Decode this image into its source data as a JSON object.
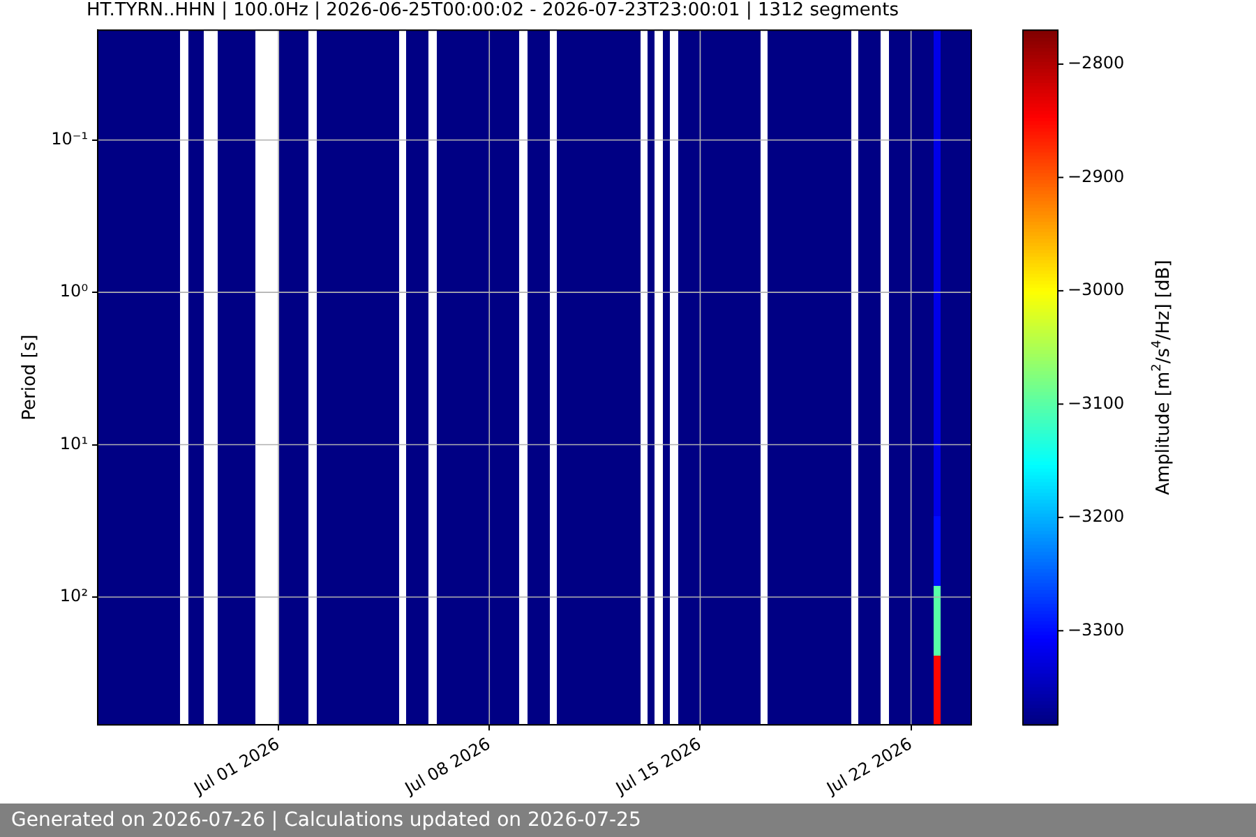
{
  "chart_data": {
    "type": "heatmap",
    "title": "HT.TYRN..HHN | 100.0Hz | 2026-06-25T00:00:02 - 2026-07-23T23:00:01 | 1312 segments",
    "ylabel": "Period [s]",
    "clabel": "Amplitude [m$^{2}$/s$^{4}$/Hz] [dB]",
    "annotations": [
      "Generated on 2026-07-26 | Calculations updated on 2026-07-25"
    ],
    "x": [
      "2026-06-25T03:00",
      "2026-06-25T09:00",
      "2026-06-25T15:00",
      "2026-06-25T21:00",
      "2026-06-26T03:00",
      "2026-06-26T09:00",
      "2026-06-26T15:00",
      "2026-06-26T21:00",
      "2026-06-27T03:00",
      "2026-06-27T09:00",
      "2026-06-27T15:00",
      "2026-06-27T21:00",
      "2026-06-28T03:00",
      "2026-06-28T09:00",
      "2026-06-28T15:00",
      "2026-06-28T21:00",
      "2026-06-29T03:00",
      "2026-06-29T09:00",
      "2026-06-29T15:00",
      "2026-06-29T21:00",
      "2026-06-30T03:00",
      "2026-06-30T09:00",
      "2026-06-30T15:00",
      "2026-06-30T21:00",
      "2026-07-01T03:00",
      "2026-07-01T09:00",
      "2026-07-01T15:00",
      "2026-07-01T21:00",
      "2026-07-02T03:00",
      "2026-07-02T09:00",
      "2026-07-02T15:00",
      "2026-07-02T21:00",
      "2026-07-03T03:00",
      "2026-07-03T09:00",
      "2026-07-03T15:00",
      "2026-07-03T21:00",
      "2026-07-04T03:00",
      "2026-07-04T09:00",
      "2026-07-04T15:00",
      "2026-07-04T21:00",
      "2026-07-05T03:00",
      "2026-07-05T09:00",
      "2026-07-05T15:00",
      "2026-07-05T21:00",
      "2026-07-06T03:00",
      "2026-07-06T09:00",
      "2026-07-06T15:00",
      "2026-07-06T21:00",
      "2026-07-07T03:00",
      "2026-07-07T09:00",
      "2026-07-07T15:00",
      "2026-07-07T21:00",
      "2026-07-08T03:00",
      "2026-07-08T09:00",
      "2026-07-08T15:00",
      "2026-07-08T21:00",
      "2026-07-09T03:00",
      "2026-07-09T09:00",
      "2026-07-09T15:00",
      "2026-07-09T21:00",
      "2026-07-10T03:00",
      "2026-07-10T09:00",
      "2026-07-10T15:00",
      "2026-07-10T21:00",
      "2026-07-11T03:00",
      "2026-07-11T09:00",
      "2026-07-11T15:00",
      "2026-07-11T21:00",
      "2026-07-12T03:00",
      "2026-07-12T09:00",
      "2026-07-12T15:00",
      "2026-07-12T21:00",
      "2026-07-13T03:00",
      "2026-07-13T09:00",
      "2026-07-13T15:00",
      "2026-07-13T21:00",
      "2026-07-14T03:00",
      "2026-07-14T09:00",
      "2026-07-14T15:00",
      "2026-07-14T21:00",
      "2026-07-15T03:00",
      "2026-07-15T09:00",
      "2026-07-15T15:00",
      "2026-07-15T21:00",
      "2026-07-16T03:00",
      "2026-07-16T09:00",
      "2026-07-16T15:00",
      "2026-07-16T21:00",
      "2026-07-17T03:00",
      "2026-07-17T09:00",
      "2026-07-17T15:00",
      "2026-07-17T21:00",
      "2026-07-18T03:00",
      "2026-07-18T09:00",
      "2026-07-18T15:00",
      "2026-07-18T21:00",
      "2026-07-19T03:00",
      "2026-07-19T09:00",
      "2026-07-19T15:00",
      "2026-07-19T21:00",
      "2026-07-20T03:00",
      "2026-07-20T09:00",
      "2026-07-20T15:00",
      "2026-07-20T21:00",
      "2026-07-21T03:00",
      "2026-07-21T09:00",
      "2026-07-21T15:00",
      "2026-07-21T21:00",
      "2026-07-22T03:00",
      "2026-07-22T09:00",
      "2026-07-22T15:00",
      "2026-07-22T21:00",
      "2026-07-23T03:00",
      "2026-07-23T09:00",
      "2026-07-23T15:00",
      "2026-07-23T21:00"
    ],
    "xlim": [
      "2026-06-25T00:00",
      "2026-07-24T00:00"
    ],
    "xticks": [
      {
        "value": "2026-07-01",
        "label": "Jul 01 2026"
      },
      {
        "value": "2026-07-08",
        "label": "Jul 08 2026"
      },
      {
        "value": "2026-07-15",
        "label": "Jul 15 2026"
      },
      {
        "value": "2026-07-22",
        "label": "Jul 22 2026"
      }
    ],
    "ylim": [
      690,
      0.019
    ],
    "yticks": [
      {
        "value": 0.1,
        "label": "10⁻¹"
      },
      {
        "value": 1,
        "label": "10⁰"
      },
      {
        "value": 10,
        "label": "10¹"
      },
      {
        "value": 100,
        "label": "10²"
      }
    ],
    "cells": [
      [
        -3380,
        -3380,
        -3380,
        -3380,
        -3380,
        -3380,
        -3380,
        -3380,
        -3380,
        -3380,
        -3380,
        null,
        -3380,
        -3380,
        null,
        null,
        -3380,
        -3380,
        -3380,
        -3380,
        -3380,
        null,
        null,
        null,
        -3380,
        -3380,
        -3380,
        -3380,
        null,
        -3380,
        -3380,
        -3380,
        -3380,
        -3380,
        -3380,
        -3380,
        -3380,
        -3380,
        -3380,
        -3380,
        null,
        -3380,
        -3380,
        -3380,
        null,
        -3380,
        -3380,
        -3380,
        -3380,
        -3380,
        -3380,
        -3380,
        -3380,
        -3380,
        -3380,
        -3380,
        null,
        -3380,
        -3380,
        -3380,
        null,
        -3380,
        -3380,
        -3380,
        -3380,
        -3380,
        -3380,
        -3380,
        -3380,
        -3380,
        -3380,
        -3380,
        null,
        -3380,
        null,
        -3380,
        null,
        -3380,
        -3380,
        -3380,
        -3380,
        -3380,
        -3380,
        -3380,
        -3380,
        -3380,
        -3380,
        -3380,
        null,
        -3380,
        -3380,
        -3380,
        -3380,
        -3380,
        -3380,
        -3380,
        -3380,
        -3380,
        -3380,
        -3380,
        null,
        -3380,
        -3380,
        -3380,
        null,
        -3380,
        -3380,
        -3380,
        -3380,
        -3380,
        -3380,
        -3320,
        -3380,
        -3380,
        -3380,
        -3380
      ],
      [
        -3380,
        -3380,
        -3380,
        -3380,
        -3380,
        -3380,
        -3380,
        -3380,
        -3380,
        -3380,
        -3380,
        null,
        -3380,
        -3380,
        null,
        null,
        -3380,
        -3380,
        -3380,
        -3380,
        -3380,
        null,
        null,
        null,
        -3380,
        -3380,
        -3380,
        -3380,
        null,
        -3380,
        -3380,
        -3380,
        -3380,
        -3380,
        -3380,
        -3380,
        -3380,
        -3380,
        -3380,
        -3380,
        null,
        -3380,
        -3380,
        -3380,
        null,
        -3380,
        -3380,
        -3380,
        -3380,
        -3380,
        -3380,
        -3380,
        -3380,
        -3380,
        -3380,
        -3380,
        null,
        -3380,
        -3380,
        -3380,
        null,
        -3380,
        -3380,
        -3380,
        -3380,
        -3380,
        -3380,
        -3380,
        -3380,
        -3380,
        -3380,
        -3380,
        null,
        -3380,
        null,
        -3380,
        null,
        -3380,
        -3380,
        -3380,
        -3380,
        -3380,
        -3380,
        -3380,
        -3380,
        -3380,
        -3380,
        -3380,
        null,
        -3380,
        -3380,
        -3380,
        -3380,
        -3380,
        -3380,
        -3380,
        -3380,
        -3380,
        -3380,
        -3380,
        null,
        -3380,
        -3380,
        -3380,
        null,
        -3380,
        -3380,
        -3380,
        -3380,
        -3380,
        -3380,
        -3320,
        -3380,
        -3380,
        -3380,
        -3380
      ],
      [
        -3380,
        -3380,
        -3380,
        -3380,
        -3380,
        -3380,
        -3380,
        -3380,
        -3380,
        -3380,
        -3380,
        null,
        -3380,
        -3380,
        null,
        null,
        -3380,
        -3380,
        -3380,
        -3380,
        -3380,
        null,
        null,
        null,
        -3380,
        -3380,
        -3380,
        -3380,
        null,
        -3380,
        -3380,
        -3380,
        -3380,
        -3380,
        -3380,
        -3380,
        -3380,
        -3380,
        -3380,
        -3380,
        null,
        -3380,
        -3380,
        -3380,
        null,
        -3380,
        -3380,
        -3380,
        -3380,
        -3380,
        -3380,
        -3380,
        -3380,
        -3380,
        -3380,
        -3380,
        null,
        -3380,
        -3380,
        -3380,
        null,
        -3380,
        -3380,
        -3380,
        -3380,
        -3380,
        -3380,
        -3380,
        -3380,
        -3380,
        -3380,
        -3380,
        null,
        -3380,
        null,
        -3380,
        null,
        -3380,
        -3380,
        -3380,
        -3380,
        -3380,
        -3380,
        -3380,
        -3380,
        -3380,
        -3380,
        -3380,
        null,
        -3380,
        -3380,
        -3380,
        -3380,
        -3380,
        -3380,
        -3380,
        -3380,
        -3380,
        -3380,
        -3380,
        null,
        -3380,
        -3380,
        -3380,
        null,
        -3380,
        -3380,
        -3380,
        -3380,
        -3380,
        -3380,
        -3320,
        -3380,
        -3380,
        -3380,
        -3380
      ],
      [
        -3380,
        -3380,
        -3380,
        -3380,
        -3380,
        -3380,
        -3380,
        -3380,
        -3380,
        -3380,
        -3380,
        null,
        -3380,
        -3380,
        null,
        null,
        -3380,
        -3380,
        -3380,
        -3380,
        -3380,
        null,
        null,
        null,
        -3380,
        -3380,
        -3380,
        -3380,
        null,
        -3380,
        -3380,
        -3380,
        -3380,
        -3380,
        -3380,
        -3380,
        -3380,
        -3380,
        -3380,
        -3380,
        null,
        -3380,
        -3380,
        -3380,
        null,
        -3380,
        -3380,
        -3380,
        -3380,
        -3380,
        -3380,
        -3380,
        -3380,
        -3380,
        -3380,
        -3380,
        null,
        -3380,
        -3380,
        -3380,
        null,
        -3380,
        -3380,
        -3380,
        -3380,
        -3380,
        -3380,
        -3380,
        -3380,
        -3380,
        -3380,
        -3380,
        null,
        -3380,
        null,
        -3380,
        null,
        -3380,
        -3380,
        -3380,
        -3380,
        -3380,
        -3380,
        -3380,
        -3380,
        -3380,
        -3380,
        -3380,
        null,
        -3380,
        -3380,
        -3380,
        -3380,
        -3380,
        -3380,
        -3380,
        -3380,
        -3380,
        -3380,
        -3380,
        null,
        -3380,
        -3380,
        -3380,
        null,
        -3380,
        -3380,
        -3380,
        -3380,
        -3380,
        -3380,
        -3320,
        -3380,
        -3380,
        -3380,
        -3380
      ],
      [
        -3380,
        -3380,
        -3380,
        -3380,
        -3380,
        -3380,
        -3380,
        -3380,
        -3380,
        -3380,
        -3380,
        null,
        -3380,
        -3380,
        null,
        null,
        -3380,
        -3380,
        -3380,
        -3380,
        -3380,
        null,
        null,
        null,
        -3380,
        -3380,
        -3380,
        -3380,
        null,
        -3380,
        -3380,
        -3380,
        -3380,
        -3380,
        -3380,
        -3380,
        -3380,
        -3380,
        -3380,
        -3380,
        null,
        -3380,
        -3380,
        -3380,
        null,
        -3380,
        -3380,
        -3380,
        -3380,
        -3380,
        -3380,
        -3380,
        -3380,
        -3380,
        -3380,
        -3380,
        null,
        -3380,
        -3380,
        -3380,
        null,
        -3380,
        -3380,
        -3380,
        -3380,
        -3380,
        -3380,
        -3380,
        -3380,
        -3380,
        -3380,
        -3380,
        null,
        -3380,
        null,
        -3380,
        null,
        -3380,
        -3380,
        -3380,
        -3380,
        -3380,
        -3380,
        -3380,
        -3380,
        -3380,
        -3380,
        -3380,
        null,
        -3380,
        -3380,
        -3380,
        -3380,
        -3380,
        -3380,
        -3380,
        -3380,
        -3380,
        -3380,
        -3380,
        null,
        -3380,
        -3380,
        -3380,
        null,
        -3380,
        -3380,
        -3380,
        -3380,
        -3380,
        -3380,
        -3320,
        -3380,
        -3380,
        -3380,
        -3380
      ],
      [
        -3380,
        -3380,
        -3380,
        -3380,
        -3380,
        -3380,
        -3380,
        -3380,
        -3380,
        -3380,
        -3380,
        null,
        -3380,
        -3380,
        null,
        null,
        -3380,
        -3380,
        -3380,
        -3380,
        -3380,
        null,
        null,
        null,
        -3380,
        -3380,
        -3380,
        -3380,
        null,
        -3380,
        -3380,
        -3380,
        -3380,
        -3380,
        -3380,
        -3380,
        -3380,
        -3380,
        -3380,
        -3380,
        null,
        -3380,
        -3380,
        -3380,
        null,
        -3380,
        -3380,
        -3380,
        -3380,
        -3380,
        -3380,
        -3380,
        -3380,
        -3380,
        -3380,
        -3380,
        null,
        -3380,
        -3380,
        -3380,
        null,
        -3380,
        -3380,
        -3380,
        -3380,
        -3380,
        -3380,
        -3380,
        -3380,
        -3380,
        -3380,
        -3380,
        null,
        -3380,
        null,
        -3380,
        null,
        -3380,
        -3380,
        -3380,
        -3380,
        -3380,
        -3380,
        -3380,
        -3380,
        -3380,
        -3380,
        -3380,
        null,
        -3380,
        -3380,
        -3380,
        -3380,
        -3380,
        -3380,
        -3380,
        -3380,
        -3380,
        -3380,
        -3380,
        null,
        -3380,
        -3380,
        -3380,
        null,
        -3380,
        -3380,
        -3380,
        -3380,
        -3380,
        -3380,
        -3320,
        -3380,
        -3380,
        -3380,
        -3380
      ],
      [
        -3380,
        -3380,
        -3380,
        -3380,
        -3380,
        -3380,
        -3380,
        -3380,
        -3380,
        -3380,
        -3380,
        null,
        -3380,
        -3380,
        null,
        null,
        -3380,
        -3380,
        -3380,
        -3380,
        -3380,
        null,
        null,
        null,
        -3380,
        -3380,
        -3380,
        -3380,
        null,
        -3380,
        -3380,
        -3380,
        -3380,
        -3380,
        -3380,
        -3380,
        -3380,
        -3380,
        -3380,
        -3380,
        null,
        -3380,
        -3380,
        -3380,
        null,
        -3380,
        -3380,
        -3380,
        -3380,
        -3380,
        -3380,
        -3380,
        -3380,
        -3380,
        -3380,
        -3380,
        null,
        -3380,
        -3380,
        -3380,
        null,
        -3380,
        -3380,
        -3380,
        -3380,
        -3380,
        -3380,
        -3380,
        -3380,
        -3380,
        -3380,
        -3380,
        null,
        -3380,
        null,
        -3380,
        null,
        -3380,
        -3380,
        -3380,
        -3380,
        -3380,
        -3380,
        -3380,
        -3380,
        -3380,
        -3380,
        -3380,
        null,
        -3380,
        -3380,
        -3380,
        -3380,
        -3380,
        -3380,
        -3380,
        -3380,
        -3380,
        -3380,
        -3380,
        null,
        -3380,
        -3380,
        -3380,
        null,
        -3380,
        -3380,
        -3380,
        -3380,
        -3380,
        -3380,
        -3320,
        -3380,
        -3380,
        -3380,
        -3380
      ],
      [
        -3380,
        -3380,
        -3380,
        -3380,
        -3380,
        -3380,
        -3380,
        -3380,
        -3380,
        -3380,
        -3380,
        null,
        -3380,
        -3380,
        null,
        null,
        -3380,
        -3380,
        -3380,
        -3380,
        -3380,
        null,
        null,
        null,
        -3380,
        -3380,
        -3380,
        -3380,
        null,
        -3380,
        -3380,
        -3380,
        -3380,
        -3380,
        -3380,
        -3380,
        -3380,
        -3380,
        -3380,
        -3380,
        null,
        -3380,
        -3380,
        -3380,
        null,
        -3380,
        -3380,
        -3380,
        -3380,
        -3380,
        -3380,
        -3380,
        -3380,
        -3380,
        -3380,
        -3380,
        null,
        -3380,
        -3380,
        -3380,
        null,
        -3380,
        -3380,
        -3380,
        -3380,
        -3380,
        -3380,
        -3380,
        -3380,
        -3380,
        -3380,
        -3380,
        null,
        -3380,
        null,
        -3380,
        null,
        -3380,
        -3380,
        -3380,
        -3380,
        -3380,
        -3380,
        -3380,
        -3380,
        -3380,
        -3380,
        -3380,
        null,
        -3380,
        -3380,
        -3380,
        -3380,
        -3380,
        -3380,
        -3380,
        -3380,
        -3380,
        -3380,
        -3380,
        null,
        -3380,
        -3380,
        -3380,
        null,
        -3380,
        -3380,
        -3380,
        -3380,
        -3380,
        -3380,
        -3300,
        -3380,
        -3380,
        -3380,
        -3380
      ],
      [
        -3380,
        -3380,
        -3380,
        -3380,
        -3380,
        -3380,
        -3380,
        -3380,
        -3380,
        -3380,
        -3380,
        null,
        -3380,
        -3380,
        null,
        null,
        -3380,
        -3380,
        -3380,
        -3380,
        -3380,
        null,
        null,
        null,
        -3380,
        -3380,
        -3380,
        -3380,
        null,
        -3380,
        -3380,
        -3380,
        -3380,
        -3380,
        -3380,
        -3380,
        -3380,
        -3380,
        -3380,
        -3380,
        null,
        -3380,
        -3380,
        -3380,
        null,
        -3380,
        -3380,
        -3380,
        -3380,
        -3380,
        -3380,
        -3380,
        -3380,
        -3380,
        -3380,
        -3380,
        null,
        -3380,
        -3380,
        -3380,
        null,
        -3380,
        -3380,
        -3380,
        -3380,
        -3380,
        -3380,
        -3380,
        -3380,
        -3380,
        -3380,
        -3380,
        null,
        -3380,
        null,
        -3380,
        null,
        -3380,
        -3380,
        -3380,
        -3380,
        -3380,
        -3380,
        -3380,
        -3380,
        -3380,
        -3380,
        -3380,
        null,
        -3380,
        -3380,
        -3380,
        -3380,
        -3380,
        -3380,
        -3380,
        -3380,
        -3380,
        -3380,
        -3380,
        null,
        -3380,
        -3380,
        -3380,
        null,
        -3380,
        -3380,
        -3380,
        -3380,
        -3380,
        -3380,
        -3100,
        -3380,
        -3380,
        -3380,
        -3380
      ],
      [
        -3380,
        -3380,
        -3380,
        -3380,
        -3380,
        -3380,
        -3380,
        -3380,
        -3380,
        -3380,
        -3380,
        null,
        -3380,
        -3380,
        null,
        null,
        -3380,
        -3380,
        -3380,
        -3380,
        -3380,
        null,
        null,
        null,
        -3380,
        -3380,
        -3380,
        -3380,
        null,
        -3380,
        -3380,
        -3380,
        -3380,
        -3380,
        -3380,
        -3380,
        -3380,
        -3380,
        -3380,
        -3380,
        null,
        -3380,
        -3380,
        -3380,
        null,
        -3380,
        -3380,
        -3380,
        -3380,
        -3380,
        -3380,
        -3380,
        -3380,
        -3380,
        -3380,
        -3380,
        null,
        -3380,
        -3380,
        -3380,
        null,
        -3380,
        -3380,
        -3380,
        -3380,
        -3380,
        -3380,
        -3380,
        -3380,
        -3380,
        -3380,
        -3380,
        null,
        -3380,
        null,
        -3380,
        null,
        -3380,
        -3380,
        -3380,
        -3380,
        -3380,
        -3380,
        -3380,
        -3380,
        -3380,
        -3380,
        -3380,
        null,
        -3380,
        -3380,
        -3380,
        -3380,
        -3380,
        -3380,
        -3380,
        -3380,
        -3380,
        -3380,
        -3380,
        null,
        -3380,
        -3380,
        -3380,
        null,
        -3380,
        -3380,
        -3380,
        -3380,
        -3380,
        -3380,
        -2850,
        -3380,
        -3380,
        -3380,
        -3380
      ]
    ],
    "clim": [
      -3383,
      -2770
    ],
    "cticks": [
      -3300,
      -3200,
      -3100,
      -3000,
      -2900,
      -2800
    ],
    "grid": true,
    "log": "y"
  }
}
